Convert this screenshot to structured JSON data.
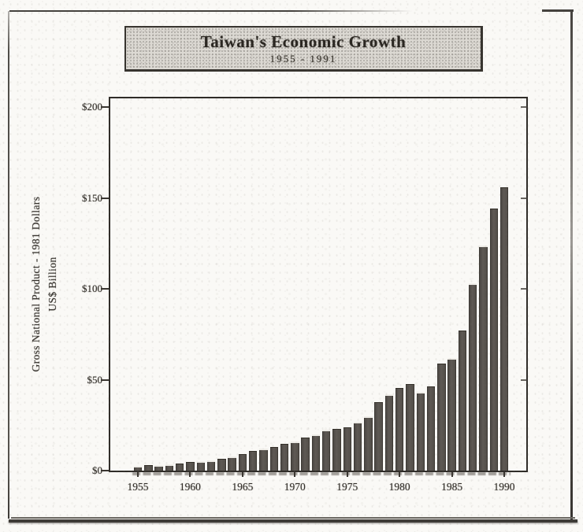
{
  "banner": {
    "title": "Taiwan's Economic Growth",
    "subtitle": "1955 - 1991"
  },
  "y_axis": {
    "title_line1": "Gross National Product - 1981 Dollars",
    "title_line2": "US$ Billion"
  },
  "chart_data": {
    "type": "bar",
    "title": "Taiwan's Economic Growth",
    "subtitle": "1955 - 1991",
    "ylabel": "Gross National Product - 1981 Dollars, US$ Billion",
    "ylim": [
      0,
      205
    ],
    "grid": false,
    "legend": "none",
    "y_ticks": [
      {
        "label": "$0",
        "value": 0
      },
      {
        "label": "$50",
        "value": 50
      },
      {
        "label": "$100",
        "value": 100
      },
      {
        "label": "$150",
        "value": 150
      },
      {
        "label": "$200",
        "value": 200
      }
    ],
    "x_tick_labels": [
      "1955",
      "1960",
      "1965",
      "1970",
      "1975",
      "1980",
      "1985",
      "1990"
    ],
    "x_start_year": 1955,
    "years": [
      1955,
      1956,
      1957,
      1958,
      1959,
      1960,
      1961,
      1962,
      1963,
      1964,
      1965,
      1966,
      1967,
      1968,
      1969,
      1970,
      1971,
      1972,
      1973,
      1974,
      1975,
      1976,
      1977,
      1978,
      1979,
      1980,
      1981,
      1982,
      1983,
      1984,
      1985,
      1986,
      1987,
      1988,
      1989,
      1990
    ],
    "values": [
      2.5,
      2.9,
      3.2,
      3.6,
      4.1,
      4.7,
      5.2,
      5.7,
      6.4,
      8.0,
      9.3,
      11.0,
      12.0,
      13.2,
      14.6,
      16.2,
      18.1,
      19.8,
      22.4,
      23.0,
      24.0,
      27.0,
      30.0,
      37.5,
      42.0,
      45.5,
      47.5,
      43.5,
      46.5,
      59.0,
      62.0,
      77.0,
      103.0,
      124.0,
      144.0,
      156.0
    ],
    "bar_color": "#56514c"
  },
  "colors": {
    "bar": "#56514c",
    "banner_fill": "#dcd9d3",
    "ink": "#2e2a26",
    "frame": "#4e4b47"
  }
}
